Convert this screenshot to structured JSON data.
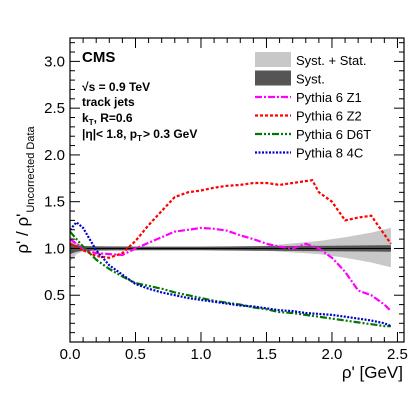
{
  "chart_data": {
    "type": "line",
    "experiment_label": "CMS",
    "xlabel": "ρ' [GeV]",
    "ylabel": "ρ' / ρ'",
    "ylabel_sub": "Uncorrected Data",
    "xlim": [
      0.0,
      2.55
    ],
    "ylim": [
      0.0,
      3.25
    ],
    "xticks": [
      0.0,
      0.5,
      1.0,
      1.5,
      2.0,
      2.5
    ],
    "yticks": [
      0.5,
      1.0,
      1.5,
      2.0,
      2.5,
      3.0
    ],
    "xtick_labels": [
      "0.0",
      "0.5",
      "1.0",
      "1.5",
      "2.0",
      "2.5"
    ],
    "ytick_labels": [
      "0.5",
      "1.0",
      "1.5",
      "2.0",
      "2.5",
      "3.0"
    ],
    "grid": false,
    "legend_position": "top-right",
    "annotations": {
      "energy": "√s = 0.9 TeV",
      "jet_type": "track jets",
      "algo_main": "k",
      "algo_sub": "T",
      "algo_rest": ", R=0.6",
      "cuts_a": "|η|< 1.8, p",
      "cuts_sub": "T",
      "cuts_b": "> 0.3 GeV"
    },
    "bands": [
      {
        "name": "Syst. + Stat.",
        "color": "#c8c8c8",
        "x": [
          0.0,
          0.05,
          0.1,
          0.2,
          0.3,
          0.5,
          1.0,
          1.5,
          1.9,
          2.1,
          2.3,
          2.45
        ],
        "lower": [
          0.86,
          0.94,
          0.97,
          0.975,
          0.98,
          0.985,
          0.985,
          0.975,
          0.94,
          0.9,
          0.85,
          0.8
        ],
        "upper": [
          1.14,
          1.06,
          1.03,
          1.025,
          1.02,
          1.015,
          1.015,
          1.03,
          1.08,
          1.12,
          1.17,
          1.22
        ]
      },
      {
        "name": "Syst.",
        "color": "#555555",
        "x": [
          0.0,
          0.05,
          0.1,
          0.2,
          0.5,
          1.0,
          1.5,
          2.0,
          2.45
        ],
        "lower": [
          0.94,
          0.965,
          0.975,
          0.978,
          0.98,
          0.98,
          0.975,
          0.97,
          0.965
        ],
        "upper": [
          1.06,
          1.035,
          1.025,
          1.022,
          1.02,
          1.02,
          1.025,
          1.03,
          1.035
        ]
      }
    ],
    "series": [
      {
        "name": "Pythia 6 Z1",
        "color": "#ff00ff",
        "dash": "7,2,2,2",
        "x": [
          0.0,
          0.05,
          0.1,
          0.15,
          0.2,
          0.3,
          0.4,
          0.5,
          0.6,
          0.7,
          0.8,
          0.9,
          1.0,
          1.1,
          1.2,
          1.3,
          1.4,
          1.5,
          1.6,
          1.7,
          1.8,
          1.9,
          2.0,
          2.1,
          2.2,
          2.3,
          2.4,
          2.45
        ],
        "values": [
          1.1,
          1.05,
          1.0,
          0.97,
          0.95,
          0.94,
          0.93,
          1.0,
          1.06,
          1.12,
          1.18,
          1.2,
          1.22,
          1.21,
          1.19,
          1.14,
          1.1,
          1.05,
          1.02,
          1.0,
          1.05,
          1.0,
          0.9,
          0.75,
          0.55,
          0.5,
          0.4,
          0.33
        ]
      },
      {
        "name": "Pythia 6 Z2",
        "color": "#ff0000",
        "dash": "3,2",
        "x": [
          0.0,
          0.05,
          0.1,
          0.15,
          0.2,
          0.3,
          0.4,
          0.5,
          0.6,
          0.7,
          0.8,
          0.9,
          1.0,
          1.1,
          1.2,
          1.3,
          1.4,
          1.5,
          1.6,
          1.7,
          1.8,
          1.85,
          1.9,
          2.0,
          2.1,
          2.2,
          2.3,
          2.35,
          2.4,
          2.45
        ],
        "values": [
          1.05,
          1.02,
          0.98,
          0.95,
          0.92,
          0.9,
          0.95,
          1.08,
          1.25,
          1.4,
          1.55,
          1.6,
          1.62,
          1.65,
          1.67,
          1.68,
          1.7,
          1.7,
          1.68,
          1.7,
          1.72,
          1.73,
          1.6,
          1.5,
          1.3,
          1.33,
          1.35,
          1.25,
          1.15,
          1.05
        ]
      },
      {
        "name": "Pythia 6 D6T",
        "color": "#007700",
        "dash": "7,2,2,2,2,2",
        "x": [
          0.0,
          0.05,
          0.1,
          0.15,
          0.2,
          0.3,
          0.4,
          0.5,
          0.6,
          0.7,
          0.8,
          0.9,
          1.0,
          1.1,
          1.2,
          1.3,
          1.4,
          1.5,
          1.6,
          1.7,
          1.8,
          1.9,
          2.0,
          2.1,
          2.2,
          2.3,
          2.4,
          2.45
        ],
        "values": [
          1.18,
          1.1,
          1.02,
          0.95,
          0.88,
          0.78,
          0.7,
          0.63,
          0.6,
          0.57,
          0.53,
          0.5,
          0.47,
          0.44,
          0.42,
          0.4,
          0.37,
          0.35,
          0.32,
          0.31,
          0.29,
          0.27,
          0.25,
          0.23,
          0.21,
          0.19,
          0.17,
          0.17
        ]
      },
      {
        "name": "Pythia 8 4C",
        "color": "#0000cc",
        "dash": "2,1.5",
        "x": [
          0.0,
          0.05,
          0.1,
          0.15,
          0.2,
          0.3,
          0.4,
          0.5,
          0.6,
          0.7,
          0.8,
          0.9,
          1.0,
          1.1,
          1.2,
          1.3,
          1.4,
          1.5,
          1.6,
          1.7,
          1.8,
          1.9,
          2.0,
          2.1,
          2.2,
          2.3,
          2.4,
          2.45
        ],
        "values": [
          1.2,
          1.28,
          1.22,
          1.1,
          0.98,
          0.82,
          0.72,
          0.62,
          0.57,
          0.53,
          0.5,
          0.47,
          0.45,
          0.43,
          0.41,
          0.39,
          0.38,
          0.36,
          0.34,
          0.33,
          0.31,
          0.3,
          0.29,
          0.27,
          0.25,
          0.23,
          0.2,
          0.17
        ]
      }
    ]
  }
}
